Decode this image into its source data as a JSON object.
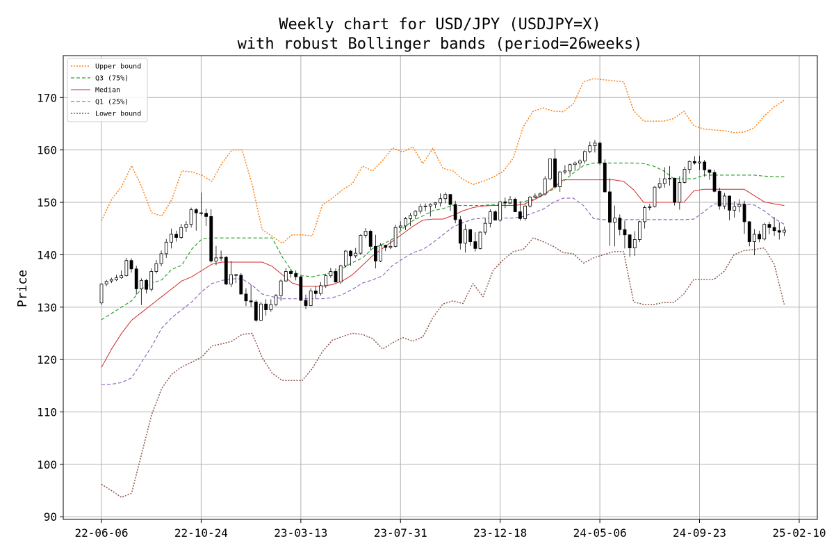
{
  "chart_data": {
    "type": "candlestick",
    "title": "Weekly chart for USD/JPY (USDJPY=X)",
    "subtitle": "with robust Bollinger bands (period=26weeks)",
    "xlabel": "",
    "ylabel": "Price",
    "ylim": [
      89.5,
      178
    ],
    "yticks": [
      90,
      100,
      110,
      120,
      130,
      140,
      150,
      160,
      170
    ],
    "xticks": [
      "22-06-06",
      "22-10-24",
      "23-03-13",
      "23-07-31",
      "23-12-18",
      "24-05-06",
      "24-09-23",
      "25-02-10"
    ],
    "grid": true,
    "legend_position": "top-left",
    "colors": {
      "up_body": "#ffffff",
      "down_body": "#000000",
      "upper": "#ff7f0e",
      "q3": "#2ca02c",
      "median": "#d62728",
      "q1": "#9467bd",
      "lower": "#8c564b",
      "grid": "#b0b0b0"
    },
    "legend": [
      "Upper bound",
      "Q3 (75%)",
      "Median",
      "Q1 (25%)",
      "Lower bound"
    ],
    "candles": [
      [
        130.8,
        134.6,
        130.4,
        134.4
      ],
      [
        134.4,
        135.2,
        134.0,
        134.9
      ],
      [
        135.0,
        135.6,
        134.6,
        135.3
      ],
      [
        135.2,
        136.2,
        135.0,
        135.6
      ],
      [
        135.6,
        137.0,
        135.4,
        136.0
      ],
      [
        136.0,
        139.4,
        135.8,
        138.9
      ],
      [
        138.9,
        139.3,
        136.6,
        137.3
      ],
      [
        137.3,
        137.9,
        132.4,
        133.5
      ],
      [
        133.5,
        135.5,
        130.4,
        135.1
      ],
      [
        135.1,
        135.4,
        132.6,
        133.4
      ],
      [
        133.4,
        137.4,
        133.0,
        136.8
      ],
      [
        136.8,
        139.0,
        136.4,
        138.3
      ],
      [
        138.3,
        140.8,
        137.8,
        140.2
      ],
      [
        140.2,
        143.0,
        139.4,
        142.4
      ],
      [
        142.4,
        145.0,
        141.2,
        143.9
      ],
      [
        143.9,
        144.6,
        142.5,
        143.3
      ],
      [
        143.3,
        145.9,
        143.0,
        145.2
      ],
      [
        145.2,
        146.4,
        144.3,
        145.8
      ],
      [
        145.8,
        149.0,
        145.2,
        148.6
      ],
      [
        148.6,
        148.9,
        144.6,
        148.0
      ],
      [
        148.0,
        151.9,
        147.5,
        147.9
      ],
      [
        147.9,
        148.8,
        145.5,
        147.3
      ],
      [
        147.3,
        148.7,
        138.5,
        138.8
      ],
      [
        138.8,
        141.7,
        138.0,
        139.4
      ],
      [
        139.4,
        140.8,
        138.8,
        139.5
      ],
      [
        139.5,
        139.8,
        134.2,
        134.4
      ],
      [
        134.4,
        138.8,
        133.8,
        136.2
      ],
      [
        136.2,
        136.3,
        134.6,
        136.1
      ],
      [
        136.1,
        136.5,
        132.4,
        132.5
      ],
      [
        132.5,
        133.6,
        130.2,
        131.2
      ],
      [
        131.2,
        134.3,
        130.0,
        131.0
      ],
      [
        131.0,
        131.4,
        127.2,
        127.5
      ],
      [
        127.5,
        131.0,
        127.3,
        130.6
      ],
      [
        130.6,
        131.5,
        128.4,
        129.5
      ],
      [
        129.5,
        131.5,
        129.1,
        130.5
      ],
      [
        130.5,
        132.5,
        130.2,
        132.2
      ],
      [
        132.2,
        135.3,
        131.2,
        135.0
      ],
      [
        135.0,
        137.5,
        134.8,
        136.8
      ],
      [
        136.8,
        137.3,
        135.6,
        136.4
      ],
      [
        136.4,
        137.0,
        135.1,
        135.8
      ],
      [
        135.8,
        136.0,
        131.2,
        131.3
      ],
      [
        131.3,
        132.4,
        129.6,
        130.3
      ],
      [
        130.3,
        133.6,
        130.2,
        133.1
      ],
      [
        133.1,
        134.1,
        131.6,
        132.6
      ],
      [
        132.6,
        134.8,
        132.2,
        134.1
      ],
      [
        134.1,
        136.3,
        133.7,
        136.0
      ],
      [
        136.0,
        137.5,
        135.6,
        136.8
      ],
      [
        136.8,
        137.4,
        134.7,
        134.8
      ],
      [
        134.8,
        138.1,
        134.4,
        137.9
      ],
      [
        137.9,
        140.9,
        137.6,
        140.7
      ],
      [
        140.7,
        140.9,
        137.9,
        139.8
      ],
      [
        139.8,
        141.3,
        139.4,
        140.3
      ],
      [
        140.3,
        143.9,
        140.0,
        143.7
      ],
      [
        143.7,
        145.1,
        143.2,
        144.5
      ],
      [
        144.5,
        144.8,
        140.8,
        141.6
      ],
      [
        141.6,
        143.8,
        137.4,
        138.8
      ],
      [
        138.8,
        142.2,
        138.6,
        141.8
      ],
      [
        141.8,
        141.9,
        140.7,
        141.4
      ],
      [
        141.4,
        142.8,
        141.1,
        141.6
      ],
      [
        141.6,
        145.7,
        141.4,
        145.2
      ],
      [
        145.2,
        146.4,
        144.7,
        145.5
      ],
      [
        145.5,
        147.2,
        144.7,
        146.9
      ],
      [
        146.9,
        148.0,
        145.5,
        147.5
      ],
      [
        147.5,
        148.5,
        146.8,
        148.3
      ],
      [
        148.3,
        149.7,
        147.8,
        149.2
      ],
      [
        149.2,
        149.8,
        148.3,
        149.3
      ],
      [
        149.3,
        149.8,
        147.3,
        149.6
      ],
      [
        149.6,
        150.0,
        148.9,
        149.9
      ],
      [
        149.9,
        151.7,
        149.2,
        150.7
      ],
      [
        150.7,
        151.9,
        149.8,
        151.5
      ],
      [
        151.5,
        151.6,
        148.4,
        149.6
      ],
      [
        149.6,
        150.3,
        146.0,
        146.7
      ],
      [
        146.7,
        147.4,
        141.0,
        142.2
      ],
      [
        142.2,
        145.8,
        140.4,
        144.8
      ],
      [
        144.8,
        144.9,
        141.7,
        142.5
      ],
      [
        142.5,
        144.3,
        140.6,
        141.2
      ],
      [
        141.2,
        144.5,
        141.0,
        144.3
      ],
      [
        144.3,
        147.0,
        143.8,
        146.0
      ],
      [
        146.0,
        148.7,
        145.2,
        148.2
      ],
      [
        148.2,
        148.5,
        146.6,
        146.6
      ],
      [
        146.6,
        150.3,
        146.3,
        150.1
      ],
      [
        150.1,
        150.9,
        148.9,
        149.9
      ],
      [
        149.9,
        151.2,
        149.8,
        150.6
      ],
      [
        150.6,
        150.9,
        148.3,
        148.2
      ],
      [
        148.2,
        150.2,
        146.5,
        146.9
      ],
      [
        146.9,
        149.6,
        146.5,
        149.3
      ],
      [
        149.3,
        151.2,
        149.0,
        151.0
      ],
      [
        151.0,
        151.7,
        150.8,
        151.2
      ],
      [
        151.2,
        151.9,
        151.0,
        151.6
      ],
      [
        151.6,
        155.0,
        151.3,
        154.5
      ],
      [
        154.5,
        158.0,
        154.2,
        158.3
      ],
      [
        158.3,
        160.2,
        152.6,
        153.0
      ],
      [
        153.0,
        156.0,
        152.0,
        155.8
      ],
      [
        155.8,
        157.1,
        155.4,
        156.0
      ],
      [
        156.0,
        157.4,
        155.3,
        157.2
      ],
      [
        157.2,
        157.8,
        156.0,
        157.5
      ],
      [
        157.5,
        158.2,
        156.5,
        157.9
      ],
      [
        157.9,
        159.9,
        157.4,
        159.7
      ],
      [
        159.7,
        161.6,
        159.4,
        160.8
      ],
      [
        160.8,
        161.9,
        159.5,
        161.3
      ],
      [
        161.3,
        161.6,
        157.1,
        157.5
      ],
      [
        157.5,
        158.2,
        151.9,
        152.0
      ],
      [
        152.0,
        154.6,
        141.7,
        146.2
      ],
      [
        146.2,
        149.4,
        141.6,
        147.0
      ],
      [
        147.0,
        147.7,
        143.7,
        144.8
      ],
      [
        144.8,
        146.5,
        141.2,
        143.8
      ],
      [
        143.8,
        143.9,
        139.6,
        141.3
      ],
      [
        141.3,
        144.5,
        139.8,
        142.9
      ],
      [
        142.9,
        146.5,
        142.4,
        146.3
      ],
      [
        146.3,
        149.4,
        145.0,
        149.0
      ],
      [
        149.0,
        149.7,
        148.5,
        149.2
      ],
      [
        149.2,
        153.1,
        149.0,
        152.9
      ],
      [
        152.9,
        154.7,
        152.5,
        153.6
      ],
      [
        153.6,
        156.7,
        152.8,
        154.5
      ],
      [
        154.5,
        156.9,
        153.2,
        154.6
      ],
      [
        154.6,
        154.7,
        149.4,
        150.0
      ],
      [
        150.0,
        155.0,
        148.6,
        153.8
      ],
      [
        153.8,
        156.8,
        153.6,
        156.3
      ],
      [
        156.3,
        158.0,
        155.5,
        157.8
      ],
      [
        157.8,
        158.8,
        157.2,
        157.5
      ],
      [
        157.5,
        158.9,
        156.2,
        157.7
      ],
      [
        157.7,
        158.1,
        154.9,
        156.2
      ],
      [
        156.2,
        156.3,
        154.3,
        155.7
      ],
      [
        155.7,
        156.2,
        151.9,
        152.1
      ],
      [
        152.1,
        152.8,
        148.6,
        149.3
      ],
      [
        149.3,
        151.8,
        148.7,
        151.2
      ],
      [
        151.2,
        151.3,
        146.6,
        148.5
      ],
      [
        148.5,
        150.2,
        147.1,
        149.2
      ],
      [
        149.2,
        150.6,
        148.1,
        149.6
      ],
      [
        149.6,
        150.3,
        144.0,
        146.3
      ],
      [
        146.3,
        146.4,
        141.6,
        142.5
      ],
      [
        142.5,
        144.9,
        139.9,
        143.9
      ],
      [
        143.9,
        144.6,
        142.4,
        143.0
      ],
      [
        143.0,
        146.1,
        142.7,
        145.8
      ],
      [
        145.8,
        146.3,
        143.9,
        145.2
      ],
      [
        145.2,
        147.2,
        143.6,
        144.6
      ],
      [
        144.6,
        146.2,
        142.9,
        144.3
      ],
      [
        144.3,
        145.4,
        143.6,
        144.7
      ]
    ],
    "bands": {
      "upper": [
        146.5,
        150.5,
        153.0,
        157.0,
        153.0,
        148.0,
        147.4,
        150.5,
        156.0,
        155.8,
        155.2,
        154.0,
        157.5,
        160.0,
        160.0,
        153.5,
        144.8,
        143.5,
        142.2,
        143.8,
        143.8,
        143.6,
        149.5,
        150.8,
        152.4,
        153.6,
        156.9,
        156.0,
        158.0,
        160.4,
        159.6,
        160.6,
        157.4,
        160.3,
        156.5,
        156.0,
        154.4,
        153.4,
        154.0,
        154.8,
        155.9,
        158.4,
        164.4,
        167.4,
        168.0,
        167.4,
        167.3,
        168.8,
        173.0,
        173.6,
        173.4,
        173.2,
        173.0,
        167.5,
        165.5,
        165.5,
        165.5,
        166.0,
        167.4,
        164.6,
        164.0,
        163.8,
        163.7,
        163.3,
        163.4,
        164.2,
        166.5,
        168.2,
        169.5
      ],
      "q3": [
        127.6,
        128.8,
        130.0,
        131.2,
        133.5,
        134.6,
        135.2,
        137.2,
        138.0,
        141.1,
        143.0,
        143.2,
        143.2,
        143.2,
        143.2,
        143.2,
        143.2,
        143.2,
        139.6,
        136.8,
        136.0,
        135.8,
        136.2,
        136.6,
        137.4,
        138.5,
        139.4,
        141.2,
        142.0,
        143.0,
        145.0,
        146.5,
        147.4,
        148.4,
        148.8,
        149.4,
        149.4,
        149.4,
        149.4,
        149.6,
        149.7,
        149.8,
        150.1,
        150.6,
        151.5,
        152.5,
        154.0,
        155.6,
        157.0,
        157.5,
        157.5,
        157.5,
        157.5,
        157.5,
        157.4,
        156.9,
        156.0,
        154.5,
        154.5,
        154.5,
        155.2,
        155.2,
        155.2,
        155.2,
        155.2,
        155.2,
        155.0,
        154.9,
        154.9
      ],
      "median": [
        118.5,
        122.0,
        125.0,
        127.5,
        129.0,
        130.5,
        132.0,
        133.5,
        135.0,
        135.8,
        137.0,
        138.2,
        138.6,
        138.6,
        138.6,
        138.6,
        138.6,
        137.8,
        136.2,
        134.6,
        134.0,
        134.0,
        134.0,
        134.3,
        135.0,
        136.2,
        138.0,
        139.8,
        141.2,
        142.6,
        144.0,
        145.4,
        146.6,
        146.8,
        146.8,
        147.5,
        148.4,
        149.0,
        149.3,
        149.4,
        149.4,
        149.4,
        149.6,
        150.4,
        151.4,
        152.8,
        154.3,
        154.3,
        154.3,
        154.3,
        154.3,
        154.3,
        154.0,
        152.4,
        150.0,
        150.0,
        150.0,
        150.0,
        150.0,
        152.2,
        152.5,
        152.5,
        152.5,
        152.5,
        152.5,
        151.3,
        150.1,
        149.7,
        149.4
      ],
      "q1": [
        115.2,
        115.3,
        115.6,
        116.5,
        119.5,
        122.5,
        126.0,
        128.0,
        129.5,
        131.0,
        133.0,
        134.5,
        135.1,
        135.4,
        135.4,
        134.2,
        132.5,
        132.0,
        131.6,
        131.6,
        131.6,
        131.6,
        131.6,
        131.8,
        132.4,
        133.4,
        134.6,
        135.2,
        136.0,
        138.0,
        139.2,
        140.4,
        141.0,
        142.3,
        143.8,
        145.3,
        146.1,
        146.8,
        147.0,
        147.0,
        147.0,
        147.0,
        147.3,
        148.0,
        148.7,
        150.0,
        150.8,
        150.8,
        149.4,
        146.9,
        146.7,
        146.7,
        146.7,
        146.7,
        146.7,
        146.7,
        146.7,
        146.7,
        146.7,
        146.8,
        148.2,
        149.7,
        149.7,
        149.7,
        149.7,
        149.5,
        148.4,
        146.9,
        145.8
      ],
      "lower": [
        96.2,
        95.0,
        93.7,
        94.5,
        102.0,
        109.5,
        114.5,
        117.2,
        118.6,
        119.5,
        120.5,
        122.6,
        123.0,
        123.5,
        124.8,
        125.0,
        120.4,
        117.4,
        116.0,
        116.0,
        116.0,
        118.3,
        121.5,
        123.7,
        124.4,
        125.0,
        124.8,
        124.0,
        122.0,
        123.2,
        124.2,
        123.5,
        124.3,
        128.0,
        130.6,
        131.2,
        130.7,
        134.5,
        132.0,
        137.0,
        139.0,
        140.6,
        141.0,
        143.2,
        142.5,
        141.6,
        140.4,
        140.2,
        138.4,
        139.4,
        140.0,
        140.6,
        140.6,
        131.0,
        130.5,
        130.5,
        130.9,
        130.9,
        132.5,
        135.3,
        135.3,
        135.3,
        136.8,
        140.0,
        140.8,
        141.0,
        141.3,
        138.2,
        130.5
      ]
    }
  }
}
